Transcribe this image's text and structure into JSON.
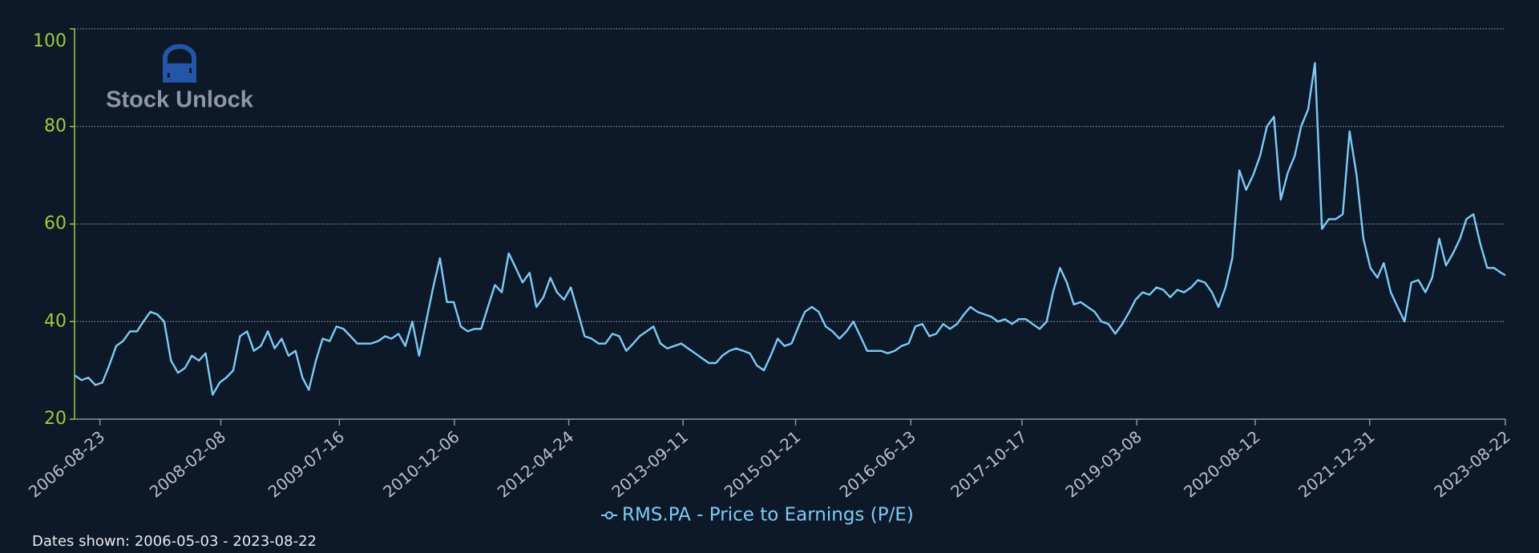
{
  "logo": "Stock Unlock",
  "footnote": "Dates shown: 2006-05-03 - 2023-08-22",
  "chart_data": {
    "type": "line",
    "xlim": [
      "2006-05-03",
      "2023-08-22"
    ],
    "xticks": [
      "2006-08-23",
      "2008-02-08",
      "2009-07-16",
      "2010-12-06",
      "2012-04-24",
      "2013-09-11",
      "2015-01-21",
      "2016-06-13",
      "2017-10-17",
      "2019-03-08",
      "2020-08-12",
      "2021-12-31",
      "2023-08-22"
    ],
    "ylim": [
      20,
      100
    ],
    "yticks": [
      20,
      40,
      60,
      80,
      100
    ],
    "grid": true,
    "legend": "bottom",
    "x": [
      "2006-05-03",
      "2006-06-03",
      "2006-07-03",
      "2006-08-03",
      "2006-09-03",
      "2006-10-03",
      "2006-11-03",
      "2006-12-03",
      "2007-01-03",
      "2007-02-03",
      "2007-03-03",
      "2007-04-03",
      "2007-05-03",
      "2007-06-03",
      "2007-07-03",
      "2007-08-03",
      "2007-09-03",
      "2007-10-03",
      "2007-11-03",
      "2007-12-03",
      "2008-01-03",
      "2008-02-03",
      "2008-03-03",
      "2008-04-03",
      "2008-05-03",
      "2008-06-03",
      "2008-07-03",
      "2008-08-03",
      "2008-09-03",
      "2008-10-03",
      "2008-11-03",
      "2008-12-03",
      "2009-01-03",
      "2009-02-03",
      "2009-03-03",
      "2009-04-03",
      "2009-05-03",
      "2009-06-03",
      "2009-07-03",
      "2009-08-03",
      "2009-09-03",
      "2009-10-03",
      "2009-11-03",
      "2009-12-03",
      "2010-01-03",
      "2010-02-03",
      "2010-03-03",
      "2010-04-03",
      "2010-05-03",
      "2010-06-03",
      "2010-07-03",
      "2010-08-03",
      "2010-09-03",
      "2010-10-03",
      "2010-11-03",
      "2010-12-03",
      "2011-01-03",
      "2011-02-03",
      "2011-03-03",
      "2011-04-03",
      "2011-05-03",
      "2011-06-03",
      "2011-07-03",
      "2011-08-03",
      "2011-09-03",
      "2011-10-03",
      "2011-11-03",
      "2011-12-03",
      "2012-01-03",
      "2012-02-03",
      "2012-03-03",
      "2012-04-03",
      "2012-05-03",
      "2012-06-03",
      "2012-07-03",
      "2012-08-03",
      "2012-09-03",
      "2012-10-03",
      "2012-11-03",
      "2012-12-03",
      "2013-01-03",
      "2013-02-03",
      "2013-03-03",
      "2013-04-03",
      "2013-05-03",
      "2013-06-03",
      "2013-07-03",
      "2013-08-03",
      "2013-09-03",
      "2013-10-03",
      "2013-11-03",
      "2013-12-03",
      "2014-01-03",
      "2014-02-03",
      "2014-03-03",
      "2014-04-03",
      "2014-05-03",
      "2014-06-03",
      "2014-07-03",
      "2014-08-03",
      "2014-09-03",
      "2014-10-03",
      "2014-11-03",
      "2014-12-03",
      "2015-01-03",
      "2015-02-03",
      "2015-03-03",
      "2015-04-03",
      "2015-05-03",
      "2015-06-03",
      "2015-07-03",
      "2015-08-03",
      "2015-09-03",
      "2015-10-03",
      "2015-11-03",
      "2015-12-03",
      "2016-01-03",
      "2016-02-03",
      "2016-03-03",
      "2016-04-03",
      "2016-05-03",
      "2016-06-03",
      "2016-07-03",
      "2016-08-03",
      "2016-09-03",
      "2016-10-03",
      "2016-11-03",
      "2016-12-03",
      "2017-01-03",
      "2017-02-03",
      "2017-03-03",
      "2017-04-03",
      "2017-05-03",
      "2017-06-03",
      "2017-07-03",
      "2017-08-03",
      "2017-09-03",
      "2017-10-03",
      "2017-11-03",
      "2017-12-03",
      "2018-01-03",
      "2018-02-03",
      "2018-03-03",
      "2018-04-03",
      "2018-05-03",
      "2018-06-03",
      "2018-07-03",
      "2018-08-03",
      "2018-09-03",
      "2018-10-03",
      "2018-11-03",
      "2018-12-03",
      "2019-01-03",
      "2019-02-03",
      "2019-03-03",
      "2019-04-03",
      "2019-05-03",
      "2019-06-03",
      "2019-07-03",
      "2019-08-03",
      "2019-09-03",
      "2019-10-03",
      "2019-11-03",
      "2019-12-03",
      "2020-01-03",
      "2020-02-03",
      "2020-03-03",
      "2020-04-03",
      "2020-05-03",
      "2020-06-03",
      "2020-07-03",
      "2020-08-03",
      "2020-09-03",
      "2020-10-03",
      "2020-11-03",
      "2020-12-03",
      "2021-01-03",
      "2021-02-03",
      "2021-03-03",
      "2021-04-03",
      "2021-05-03",
      "2021-06-03",
      "2021-07-03",
      "2021-08-03",
      "2021-09-03",
      "2021-10-03",
      "2021-11-03",
      "2021-12-03",
      "2022-01-03",
      "2022-02-03",
      "2022-03-03",
      "2022-04-03",
      "2022-05-03",
      "2022-06-03",
      "2022-07-03",
      "2022-08-03",
      "2022-09-03",
      "2022-10-03",
      "2022-11-03",
      "2022-12-03",
      "2023-01-03",
      "2023-02-03",
      "2023-03-03",
      "2023-04-03",
      "2023-05-03",
      "2023-06-03",
      "2023-07-03",
      "2023-08-03",
      "2023-08-22"
    ],
    "series": [
      {
        "name": "RMS.PA - Price to Earnings (P/E)",
        "color": "#7ecbf5",
        "values": [
          29,
          28,
          28.5,
          27,
          27.5,
          31,
          35,
          36,
          38,
          38,
          40,
          42,
          41.5,
          40,
          32,
          29.5,
          30.5,
          33,
          32,
          33.5,
          25,
          27.5,
          28.5,
          30,
          37,
          38,
          34,
          35,
          38,
          34.5,
          36.5,
          33,
          34,
          28.5,
          26,
          32,
          36.5,
          36,
          39,
          38.5,
          37,
          35.5,
          35.5,
          35.5,
          36,
          37,
          36.5,
          37.5,
          35,
          40,
          33,
          40,
          47,
          53,
          44,
          44,
          39,
          38,
          38.5,
          38.5,
          43,
          47.5,
          46,
          54,
          51,
          48,
          50,
          43,
          45,
          49,
          46,
          44.5,
          47,
          42,
          37,
          36.5,
          35.5,
          35.5,
          37.5,
          37,
          34,
          35.5,
          37,
          38,
          39,
          35.5,
          34.5,
          35,
          35.5,
          34.5,
          33.5,
          32.5,
          31.5,
          31.5,
          33,
          34,
          34.5,
          34,
          33.5,
          31,
          30,
          33,
          36.5,
          35,
          35.5,
          39,
          42,
          43,
          42,
          39,
          38,
          36.5,
          38,
          40,
          37,
          34,
          34,
          34,
          33.5,
          34,
          35,
          35.5,
          39,
          39.5,
          37,
          37.5,
          39.5,
          38.5,
          39.5,
          41.5,
          43,
          42,
          41.5,
          41,
          40,
          40.5,
          39.5,
          40.5,
          40.5,
          39.5,
          38.5,
          40,
          46,
          51,
          48,
          43.5,
          44,
          43,
          42,
          40,
          39.5,
          37.5,
          39.5,
          42,
          44.5,
          46,
          45.5,
          47,
          46.5,
          45,
          46.5,
          46,
          47,
          48.5,
          48,
          46,
          43,
          47,
          53,
          71,
          67,
          70,
          74,
          80,
          82,
          65,
          70.5,
          74,
          80,
          83.5,
          93,
          59,
          61,
          61,
          62,
          79,
          70,
          57,
          51,
          49,
          52,
          46,
          43,
          40,
          48,
          48.5,
          46,
          49,
          57,
          51.5,
          54,
          57,
          61,
          62,
          56,
          51,
          51,
          50,
          49.5
        ]
      }
    ]
  }
}
